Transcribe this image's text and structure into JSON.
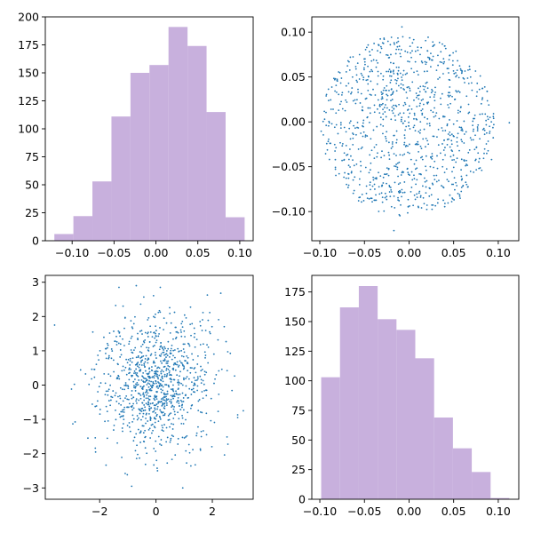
{
  "colors": {
    "hist": "#c8b0dd",
    "scatter": "#1f77b4",
    "axis": "#000000"
  },
  "chart_data": [
    {
      "type": "bar",
      "panel": "top-left",
      "bin_edges": [
        -0.1212,
        -0.0985,
        -0.0758,
        -0.0531,
        -0.0304,
        -0.0077,
        0.015,
        0.0377,
        0.0604,
        0.0831,
        0.1058
      ],
      "values": [
        6,
        22,
        53,
        111,
        150,
        157,
        191,
        174,
        115,
        21
      ],
      "xlim": [
        -0.132,
        0.116
      ],
      "ylim": [
        0,
        200
      ],
      "xticks": [
        -0.1,
        -0.05,
        0.0,
        0.05,
        0.1
      ],
      "xtick_labels": [
        "−0.10",
        "−0.05",
        "0.00",
        "0.05",
        "0.10"
      ],
      "yticks": [
        0,
        25,
        50,
        75,
        100,
        125,
        150,
        175,
        200
      ],
      "ytick_labels": [
        "0",
        "25",
        "50",
        "75",
        "100",
        "125",
        "150",
        "175",
        "200"
      ],
      "title": "",
      "xlabel": "",
      "ylabel": ""
    },
    {
      "type": "scatter",
      "panel": "top-right",
      "n_points": 1000,
      "x_range": [
        -0.0985,
        0.1124
      ],
      "y_range": [
        -0.1212,
        0.1058
      ],
      "xlim": [
        -0.109,
        0.123
      ],
      "ylim": [
        -0.1325,
        0.117
      ],
      "xticks": [
        -0.1,
        -0.05,
        0.0,
        0.05,
        0.1
      ],
      "xtick_labels": [
        "−0.10",
        "−0.05",
        "0.00",
        "0.05",
        "0.10"
      ],
      "yticks": [
        -0.1,
        -0.05,
        0.0,
        0.05,
        0.1
      ],
      "ytick_labels": [
        "−0.10",
        "−0.05",
        "0.00",
        "0.05",
        "0.10"
      ],
      "title": "",
      "xlabel": "",
      "ylabel": ""
    },
    {
      "type": "scatter",
      "panel": "bottom-left",
      "n_points": 1000,
      "distribution": "standard-normal",
      "x_range": [
        -3.6,
        3.1
      ],
      "y_range": [
        -3.0,
        2.9
      ],
      "xlim": [
        -3.93,
        3.45
      ],
      "ylim": [
        -3.33,
        3.2
      ],
      "xticks": [
        -2,
        0,
        2
      ],
      "xtick_labels": [
        "−2",
        "0",
        "2"
      ],
      "yticks": [
        -3,
        -2,
        -1,
        0,
        1,
        2,
        3
      ],
      "ytick_labels": [
        "−3",
        "−2",
        "−1",
        "0",
        "1",
        "2",
        "3"
      ],
      "title": "",
      "xlabel": "",
      "ylabel": ""
    },
    {
      "type": "bar",
      "panel": "bottom-right",
      "bin_edges": [
        -0.0985,
        -0.0774,
        -0.0563,
        -0.0352,
        -0.0141,
        0.007,
        0.0281,
        0.0492,
        0.0703,
        0.0914,
        0.1124
      ],
      "values": [
        103,
        162,
        180,
        152,
        143,
        119,
        69,
        43,
        23,
        1
      ],
      "xlim": [
        -0.109,
        0.123
      ],
      "ylim": [
        0,
        189
      ],
      "xticks": [
        -0.1,
        -0.05,
        0.0,
        0.05,
        0.1
      ],
      "xtick_labels": [
        "−0.10",
        "−0.05",
        "0.00",
        "0.05",
        "0.10"
      ],
      "yticks": [
        0,
        25,
        50,
        75,
        100,
        125,
        150,
        175
      ],
      "ytick_labels": [
        "0",
        "25",
        "50",
        "75",
        "100",
        "125",
        "150",
        "175"
      ],
      "title": "",
      "xlabel": "",
      "ylabel": ""
    }
  ]
}
